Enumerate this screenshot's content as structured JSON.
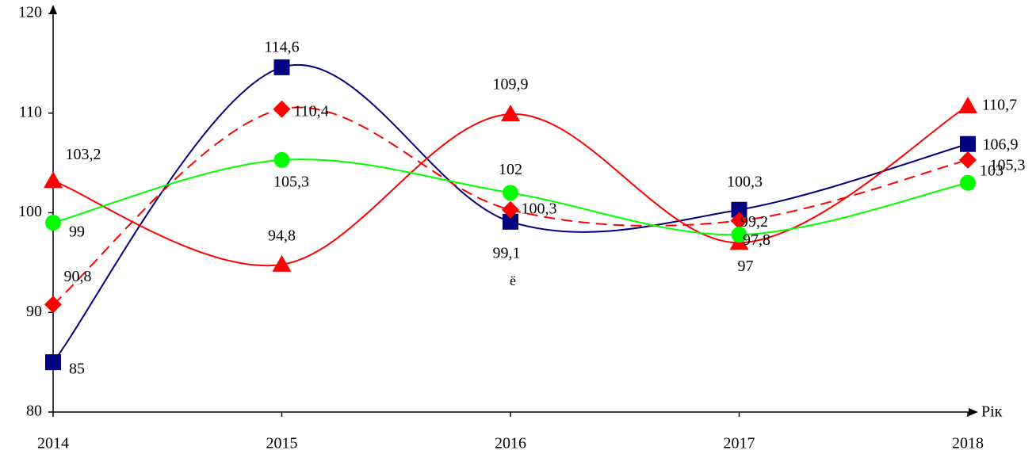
{
  "chart_data": {
    "type": "line",
    "x_label": "Рік",
    "annotations": [
      "ё"
    ],
    "categories": [
      "2014",
      "2015",
      "2016",
      "2017",
      "2018"
    ],
    "ylim": [
      80,
      120
    ],
    "yticks": [
      80,
      90,
      100,
      110,
      120
    ],
    "series": [
      {
        "color": "#000080",
        "marker": "square",
        "dashed": false,
        "values": [
          85,
          114.6,
          99.1,
          100.3,
          106.9
        ],
        "value_labels": [
          "85",
          "114,6",
          "99,1",
          "100,3",
          "106,9"
        ]
      },
      {
        "color": "#ff0000",
        "marker": "diamond",
        "dashed": true,
        "values": [
          90.8,
          110.4,
          100.3,
          99.2,
          105.3
        ],
        "value_labels": [
          "90,8",
          "110,4",
          "100,3",
          "99,2",
          "105,3"
        ]
      },
      {
        "color": "#ff0000",
        "marker": "triangle",
        "dashed": false,
        "values": [
          103.2,
          94.8,
          109.9,
          97,
          110.7
        ],
        "value_labels": [
          "103,2",
          "94,8",
          "109,9",
          "97",
          "110,7"
        ]
      },
      {
        "color": "#00ff00",
        "marker": "circle",
        "dashed": false,
        "values": [
          99,
          105.3,
          102,
          97.8,
          103
        ],
        "value_labels": [
          "99",
          "105,3",
          "102",
          "97,8",
          "103"
        ]
      }
    ]
  }
}
